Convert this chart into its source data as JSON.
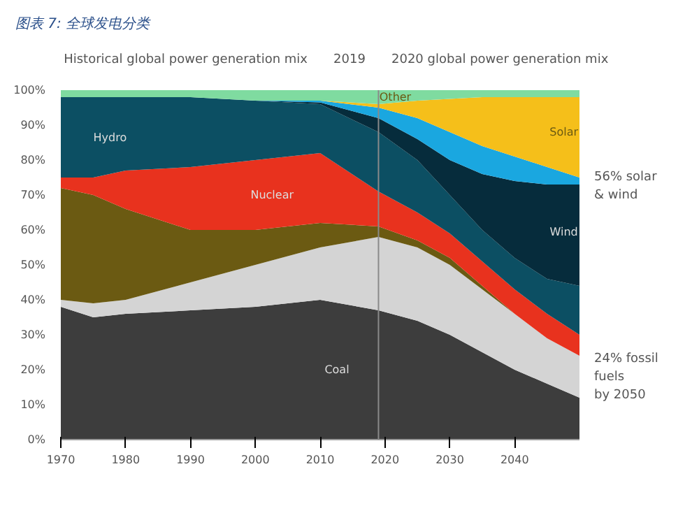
{
  "chart_data": {
    "type": "area",
    "stacked": true,
    "title": "图表 7: 全球发电分类",
    "annotations": [
      "Historical global power generation mix",
      "2020 global power generation mix",
      "56% solar & wind",
      "24% fossil fuels by 2050"
    ],
    "x": [
      1970,
      1975,
      1980,
      1990,
      2000,
      2010,
      2019,
      2025,
      2030,
      2035,
      2040,
      2045,
      2050
    ],
    "xlim": [
      1970,
      2050
    ],
    "xticks": [
      1970,
      1980,
      1990,
      2000,
      2010,
      2020,
      2030,
      2040
    ],
    "ylim": [
      0,
      100
    ],
    "yticks": [
      {
        "value": 0,
        "label": "0%"
      },
      {
        "value": 10,
        "label": "10%"
      },
      {
        "value": 20,
        "label": "20%"
      },
      {
        "value": 30,
        "label": "30%"
      },
      {
        "value": 40,
        "label": "40%"
      },
      {
        "value": 50,
        "label": "50%"
      },
      {
        "value": 60,
        "label": "60%"
      },
      {
        "value": 70,
        "label": "70%"
      },
      {
        "value": 80,
        "label": "80%"
      },
      {
        "value": 90,
        "label": "90%"
      },
      {
        "value": 100,
        "label": "100%"
      }
    ],
    "grid": false,
    "legend": false,
    "ref_lines": [
      {
        "axis": "x",
        "value": 2019,
        "label": "2019",
        "color": "#8a8a8a"
      }
    ],
    "series": [
      {
        "name": "Coal",
        "color": "#3d3d3d",
        "values": [
          38,
          35,
          36,
          37,
          38,
          40,
          37,
          34,
          30,
          25,
          20,
          16,
          12
        ]
      },
      {
        "color": "#d4d4d4",
        "values": [
          2,
          4,
          4,
          8,
          12,
          15,
          21,
          21,
          20,
          18,
          16,
          13,
          12
        ]
      },
      {
        "color": "#6b5a12",
        "values": [
          32,
          31,
          26,
          15,
          10,
          7,
          3,
          2,
          2,
          1,
          0,
          0,
          0
        ]
      },
      {
        "name": "Nuclear",
        "color": "#e8321e",
        "values": [
          3,
          5,
          11,
          18,
          20,
          20,
          10,
          8,
          7,
          7,
          7,
          7,
          6
        ]
      },
      {
        "name": "Hydro",
        "color": "#0c4f63",
        "values": [
          23,
          23,
          21,
          20,
          17,
          14,
          17,
          15,
          11,
          9,
          9,
          10,
          14
        ]
      },
      {
        "name": "Wind",
        "color": "#062c3c",
        "values": [
          0,
          0,
          0,
          0,
          0,
          0.5,
          4,
          6,
          10,
          16,
          22,
          27,
          29
        ]
      },
      {
        "color": "#1aa7e0",
        "values": [
          0,
          0,
          0,
          0,
          0,
          0.5,
          3,
          6,
          8,
          8,
          7,
          5,
          2
        ]
      },
      {
        "name": "Solar",
        "color": "#f5bf1a",
        "values": [
          0,
          0,
          0,
          0,
          0,
          0,
          1,
          5,
          9.5,
          14,
          17,
          20,
          23
        ]
      },
      {
        "name": "Other",
        "color": "#7fdba0",
        "values": [
          2,
          2,
          2,
          2,
          3,
          3,
          4,
          3,
          2.5,
          2,
          2,
          2,
          2
        ]
      }
    ]
  }
}
